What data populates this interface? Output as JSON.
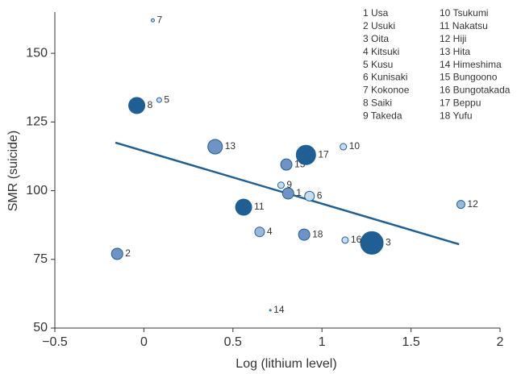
{
  "chart_data": {
    "type": "bubble",
    "x_label": "Log (lithium level)",
    "y_label": "SMR (suicide)",
    "xlim": [
      -0.5,
      2
    ],
    "xticks": [
      {
        "value": -0.5,
        "label": "−0.5"
      },
      0,
      0.5,
      1,
      1.5,
      2
    ],
    "ylim": [
      50,
      165
    ],
    "yticks": [
      50,
      75,
      100,
      125,
      150
    ],
    "labels": [
      "1",
      "2",
      "3",
      "4",
      "5",
      "6",
      "7",
      "8",
      "9",
      "10",
      "11",
      "12",
      "13",
      "14",
      "15",
      "16",
      "17",
      "18"
    ],
    "x": [
      0.81,
      -0.15,
      1.28,
      0.65,
      0.086,
      0.93,
      0.05,
      -0.04,
      0.77,
      1.12,
      0.56,
      1.78,
      0.4,
      0.71,
      0.8,
      1.13,
      0.91,
      0.9
    ],
    "y": [
      99,
      77,
      81,
      85,
      133,
      98,
      162,
      131,
      102,
      116,
      94,
      95,
      116,
      56.5,
      109.5,
      82,
      113,
      84
    ],
    "size": [
      7,
      7,
      14,
      6,
      3,
      6,
      2,
      10,
      4,
      4,
      10,
      5,
      9,
      1,
      7,
      4,
      12,
      7
    ],
    "colors": [
      "#6f93c4",
      "#6f93c4",
      "#1f5f93",
      "#9ab7dc",
      "#c8dcf0",
      "#c8dcf0",
      "#c8dcf0",
      "#1f5f93",
      "#c8dcf0",
      "#c8dcf0",
      "#1f5f93",
      "#9ab7dc",
      "#6f93c4",
      "#c8dcf0",
      "#6f93c4",
      "#c8dcf0",
      "#1f5f93",
      "#6f93c4"
    ],
    "trend_line": {
      "x": [
        -0.16,
        1.77
      ],
      "y": [
        117.5,
        80.5
      ],
      "color": "#1f5f93"
    },
    "legend": [
      "1 Usa",
      "2 Usuki",
      "3 Oita",
      "4 Kitsuki",
      "5 Kusu",
      "6 Kunisaki",
      "7 Kokonoe",
      "8 Saiki",
      "9 Takeda",
      "10 Tsukumi",
      "11 Nakatsu",
      "12 Hiji",
      "13 Hita",
      "14 Himeshima",
      "15 Bungoono",
      "16 Bungotakada",
      "17 Beppu",
      "18 Yufu"
    ]
  }
}
